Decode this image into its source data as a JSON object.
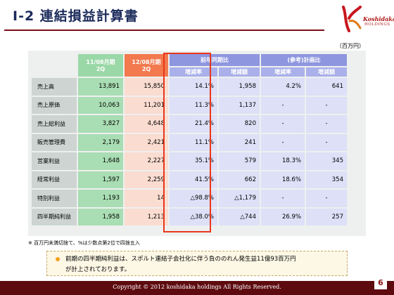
{
  "header": {
    "title": "Ⅰ-2  連結損益計算書",
    "logo_name": "Koshidaka",
    "logo_sub": "HOLDINGS"
  },
  "unit": "（百万円）",
  "table": {
    "period_prev_line1": "11/08月期",
    "period_prev_line2": "2Q",
    "period_curr_line1": "12/08月期",
    "period_curr_line2": "2Q",
    "group_yoy": "前年同期比",
    "group_plan": "(参考)計画比",
    "sub_headers": [
      "増減率",
      "増減額",
      "増減率",
      "増減額"
    ],
    "rows": [
      {
        "label": "売上高",
        "prev": "13,891",
        "curr": "15,850",
        "yoy_rate": "14.1%",
        "yoy_amt": "1,958",
        "plan_rate": "4.2%",
        "plan_amt": "641"
      },
      {
        "label": "売上原価",
        "prev": "10,063",
        "curr": "11,201",
        "yoy_rate": "11.3%",
        "yoy_amt": "1,137",
        "plan_rate": "-",
        "plan_amt": "-"
      },
      {
        "label": "売上総利益",
        "prev": "3,827",
        "curr": "4,648",
        "yoy_rate": "21.4%",
        "yoy_amt": "820",
        "plan_rate": "-",
        "plan_amt": "-"
      },
      {
        "label": "販売管理費",
        "prev": "2,179",
        "curr": "2,421",
        "yoy_rate": "11.1%",
        "yoy_amt": "241",
        "plan_rate": "-",
        "plan_amt": "-"
      },
      {
        "label": "営業利益",
        "prev": "1,648",
        "curr": "2,227",
        "yoy_rate": "35.1%",
        "yoy_amt": "579",
        "plan_rate": "18.3%",
        "plan_amt": "345"
      },
      {
        "label": "経常利益",
        "prev": "1,597",
        "curr": "2,259",
        "yoy_rate": "41.5%",
        "yoy_amt": "662",
        "plan_rate": "18.6%",
        "plan_amt": "354"
      },
      {
        "label": "特別利益",
        "prev": "1,193",
        "curr": "14",
        "yoy_rate": "△98.8%",
        "yoy_amt": "△1,179",
        "plan_rate": "-",
        "plan_amt": "-"
      },
      {
        "label": "四半期純利益",
        "prev": "1,958",
        "curr": "1,213",
        "yoy_rate": "△38.0%",
        "yoy_amt": "△744",
        "plan_rate": "26.9%",
        "plan_amt": "257"
      }
    ]
  },
  "footnote": "※  百万円未満切捨て、%は少数点第2位で四捨五入",
  "note": {
    "line1": "前期の四半期純利益は、スポルト連結子会社化に伴う負ののれん発生益11億93百万円",
    "line2": "が計上されております。"
  },
  "footer": {
    "copyright": "Copyright © 2012 koshidaka holdings All Rights Reserved.",
    "page": "6"
  }
}
